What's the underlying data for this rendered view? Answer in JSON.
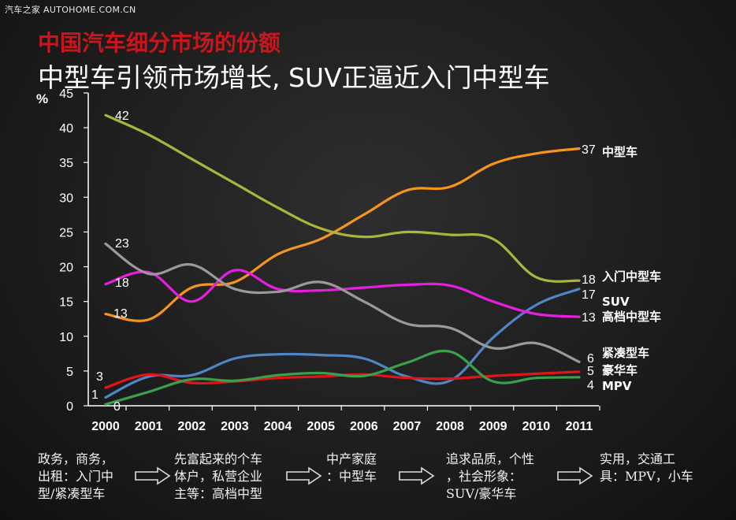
{
  "watermark": "汽车之家 AUTOHOME.COM.CN",
  "title": "中国汽车细分市场的份额",
  "subtitle": "中型车引领市场增长, SUV正逼近入门中型车",
  "chart_data": {
    "type": "line",
    "ylabel": "%",
    "ylim": [
      0,
      45
    ],
    "yticks": [
      0,
      5,
      10,
      15,
      20,
      25,
      30,
      35,
      40,
      45
    ],
    "categories": [
      "2000",
      "2001",
      "2002",
      "2003",
      "2004",
      "2005",
      "2006",
      "2007",
      "2008",
      "2009",
      "2010",
      "2011"
    ],
    "grid": false,
    "series": [
      {
        "name": "中型车",
        "color": "#f7941d",
        "start_label": "13",
        "end_label": "37",
        "values": [
          13.2,
          12.4,
          17.0,
          17.8,
          21.8,
          24.0,
          27.5,
          31.0,
          31.5,
          34.8,
          36.3,
          37.0
        ]
      },
      {
        "name": "入门中型车",
        "color": "#a9b53b",
        "start_label": "42",
        "end_label": "18",
        "values": [
          41.8,
          39.0,
          35.5,
          32.0,
          28.5,
          25.5,
          24.3,
          25.0,
          24.6,
          24.0,
          18.5,
          18.0
        ]
      },
      {
        "name": "SUV",
        "color": "#4f86c6",
        "start_label": "1",
        "end_label": "17",
        "values": [
          1.2,
          4.2,
          4.4,
          6.8,
          7.4,
          7.3,
          6.8,
          4.2,
          3.6,
          9.8,
          14.5,
          16.8
        ]
      },
      {
        "name": "高档中型车",
        "color": "#e61ee0",
        "start_label": "18",
        "end_label": "13",
        "values": [
          17.5,
          19.2,
          15.0,
          19.5,
          16.8,
          16.6,
          17.0,
          17.4,
          17.3,
          15.0,
          13.2,
          12.8
        ]
      },
      {
        "name": "紧凑型车",
        "color": "#9a9a9a",
        "start_label": "23",
        "end_label": "6",
        "values": [
          23.3,
          19.0,
          20.3,
          16.8,
          16.4,
          17.8,
          15.0,
          11.8,
          11.2,
          8.3,
          9.0,
          6.3
        ]
      },
      {
        "name": "豪华车",
        "color": "#e2141a",
        "start_label": "3",
        "end_label": "5",
        "values": [
          2.6,
          4.5,
          3.3,
          3.5,
          4.0,
          4.2,
          4.5,
          4.0,
          3.9,
          4.3,
          4.6,
          4.9
        ]
      },
      {
        "name": "MPV",
        "color": "#3aa14b",
        "start_label": "0",
        "end_label": "4",
        "values": [
          0.2,
          2.0,
          3.8,
          3.6,
          4.4,
          4.7,
          4.3,
          6.2,
          7.8,
          3.5,
          4.0,
          4.1
        ]
      }
    ]
  },
  "footer": {
    "items": [
      "政务，商务，\n出租：入门中\n型/紧凑型车",
      "先富起来的个车\n体户，私营企业\n主等：高档中型",
      "中产家庭\n：中型车",
      "追求品质，个性\n，社会形象：\nSUV/豪华车",
      "实用，交通工\n具：MPV，小车"
    ]
  }
}
